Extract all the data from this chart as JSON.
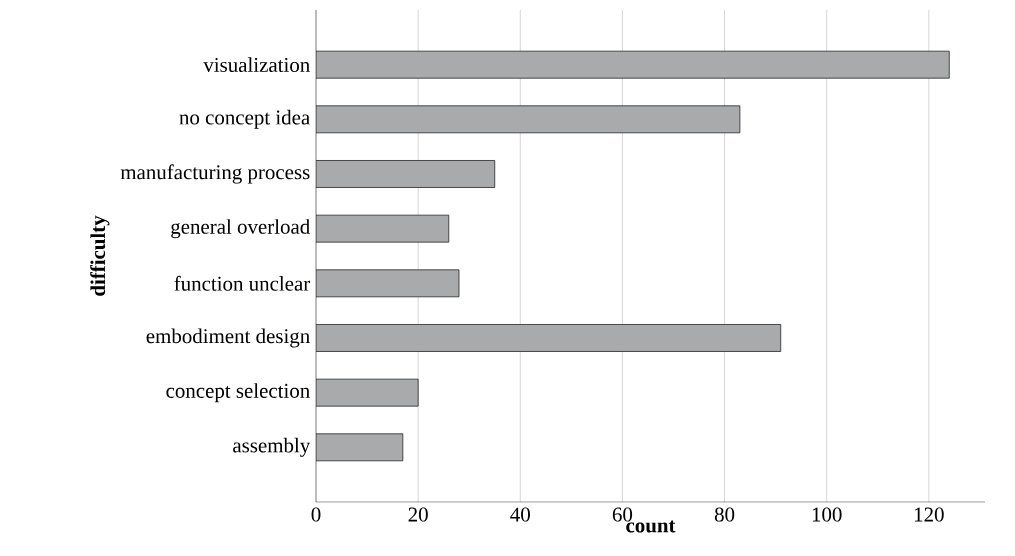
{
  "chart_data": {
    "type": "bar",
    "orientation": "horizontal",
    "xlabel": "count",
    "ylabel": "difficulty",
    "categories": [
      "visualization",
      "no concept idea",
      "manufacturing process",
      "general overload",
      "function unclear",
      "embodiment design",
      "concept selection",
      "assembly"
    ],
    "values": [
      124,
      83,
      35,
      26,
      28,
      91,
      20,
      17
    ],
    "color": "#a9aaac",
    "xlim": [
      0,
      131
    ],
    "xticks": [
      0,
      20,
      40,
      60,
      80,
      100,
      120
    ],
    "grid": "x"
  }
}
